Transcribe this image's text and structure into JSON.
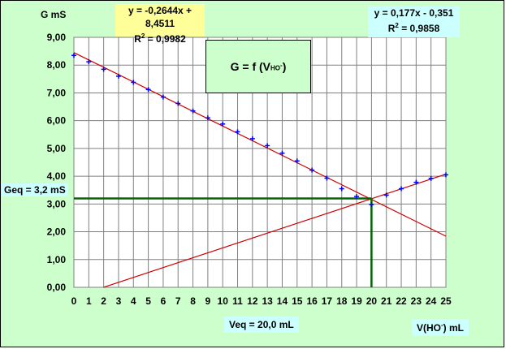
{
  "ylabel": "G mS",
  "xlabel_main": "V(HO",
  "xlabel_sup": "-",
  "xlabel_unit": ") mL",
  "title_main": "G = f (V",
  "title_sub": "HO",
  "title_sup": "-",
  "title_end": ")",
  "fit_descending": {
    "equation": "y = -0,2644x + 8,4511",
    "r2_label": "R",
    "r2_sup": "2",
    "r2_value": " = 0,9982"
  },
  "fit_ascending": {
    "equation": "y = 0,177x - 0,351",
    "r2_label": "R",
    "r2_sup": "2",
    "r2_value": " = 0,9858"
  },
  "geq_label": "Geq = 3,2 mS",
  "veq_label": "Veq = 20,0 mL",
  "colors": {
    "background": "#ccffcc",
    "points": "#0000ff",
    "fit_lines": "#cc0000",
    "equivalence_lines": "#006600",
    "grid": "#808080"
  },
  "chart_data": {
    "type": "scatter",
    "x": [
      0,
      1,
      2,
      3,
      4,
      5,
      6,
      7,
      8,
      9,
      10,
      11,
      12,
      13,
      14,
      15,
      16,
      17,
      18,
      19,
      20,
      21,
      22,
      23,
      24,
      25
    ],
    "y": [
      8.35,
      8.12,
      7.85,
      7.6,
      7.38,
      7.12,
      6.85,
      6.62,
      6.35,
      6.1,
      5.88,
      5.6,
      5.35,
      5.1,
      4.83,
      4.55,
      4.22,
      3.93,
      3.55,
      3.27,
      2.98,
      3.32,
      3.55,
      3.78,
      3.92,
      4.05
    ],
    "fit_lines": [
      {
        "slope": -0.2644,
        "intercept": 8.4511,
        "x_range": [
          0,
          25
        ]
      },
      {
        "slope": 0.177,
        "intercept": -0.351,
        "x_range": [
          1.98,
          25
        ]
      }
    ],
    "equivalence": {
      "x": 20.0,
      "y": 3.2
    },
    "xlim": [
      0,
      25
    ],
    "ylim": [
      0,
      9
    ],
    "xticks": [
      "0",
      "1",
      "2",
      "3",
      "4",
      "5",
      "6",
      "7",
      "8",
      "9",
      "10",
      "11",
      "12",
      "13",
      "14",
      "15",
      "16",
      "17",
      "18",
      "19",
      "20",
      "21",
      "22",
      "23",
      "24",
      "25"
    ],
    "yticks": [
      "0,00",
      "1,00",
      "2,00",
      "3,00",
      "4,00",
      "5,00",
      "6,00",
      "7,00",
      "8,00",
      "9,00"
    ],
    "grid": true
  }
}
